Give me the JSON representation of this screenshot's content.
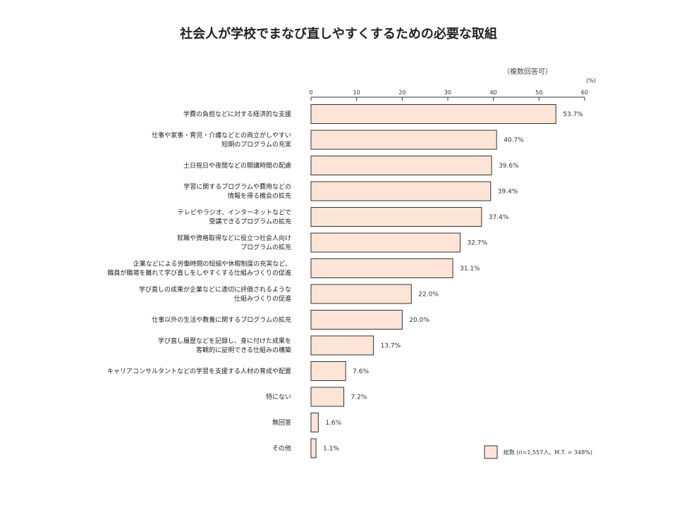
{
  "chart_data": {
    "type": "bar",
    "orientation": "horizontal",
    "title": "社会人が学校でまなび直しやすくするための必要な取組",
    "subtitle": "（複数回答可）",
    "unit_label": "(%)",
    "xlim": [
      0,
      60
    ],
    "xticks": [
      0,
      10,
      20,
      30,
      40,
      50,
      60
    ],
    "grid": false,
    "legend_position": "bottom-right",
    "series": [
      {
        "name": "総数 (n=1,557人、M.T. = 348%)",
        "color": "#fce4d6",
        "values": [
          53.7,
          40.7,
          39.6,
          39.4,
          37.4,
          32.7,
          31.1,
          22.0,
          20.0,
          13.7,
          7.6,
          7.2,
          1.6,
          1.1
        ]
      }
    ],
    "value_labels": [
      "53.7%",
      "40.7%",
      "39.6%",
      "39.4%",
      "37.4%",
      "32.7%",
      "31.1%",
      "22.0%",
      "20.0%",
      "13.7%",
      "7.6%",
      "7.2%",
      "1.6%",
      "1.1%"
    ],
    "categories": [
      [
        "学費の負担などに対する経済的な支援"
      ],
      [
        "仕事や家事・育児・介護などとの両立がしやすい",
        "短期のプログラムの充実"
      ],
      [
        "土日祝日や夜間などの開講時間の配慮"
      ],
      [
        "学習に関するプログラムや費用などの",
        "情報を得る機会の拡充"
      ],
      [
        "テレビやラジオ、インターネットなどで",
        "受講できるプログラムの拡充"
      ],
      [
        "就職や資格取得などに役立つ社会人向け",
        "プログラムの拡充"
      ],
      [
        "企業などによる労働時間の短縮や休暇制度の充実など、",
        "職員が職場を離れて学び直しをしやすくする仕組みづくりの促進"
      ],
      [
        "学び直しの成果が企業などに適切に評価されるような",
        "仕組みづくりの促進"
      ],
      [
        "仕事以外の生活や教養に関するプログラムの拡充"
      ],
      [
        "学び直し履歴などを記録し、身に付けた成果を",
        "客観的に証明できる仕組みの構築"
      ],
      [
        "キャリアコンサルタントなどの学習を支援する人材の育成や配置"
      ],
      [
        "特にない"
      ],
      [
        "無回答"
      ],
      [
        "その他"
      ]
    ]
  }
}
